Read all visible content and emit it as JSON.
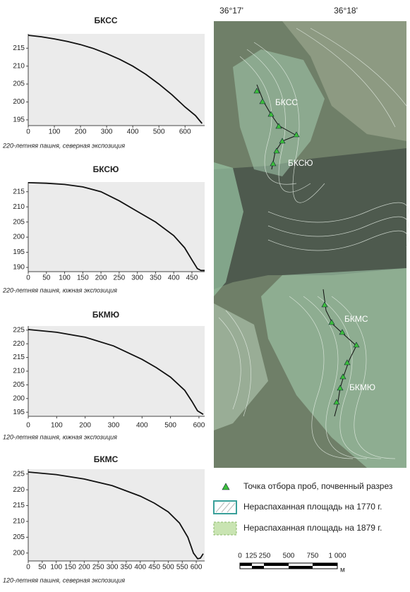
{
  "chart_data": [
    {
      "type": "line",
      "title": "БКСС",
      "x_label": "220-летняя пашня, северная экспозиция",
      "color": "#111111",
      "x": [
        0,
        50,
        100,
        150,
        200,
        250,
        300,
        350,
        400,
        450,
        500,
        550,
        600,
        640,
        665
      ],
      "values": [
        218.6,
        218.2,
        217.6,
        216.9,
        216.0,
        214.9,
        213.5,
        211.9,
        210.0,
        207.7,
        205.0,
        202.0,
        198.6,
        196.2,
        194.0
      ],
      "xlim": [
        0,
        675
      ],
      "ylim": [
        193.4,
        219
      ],
      "xticks": [
        0,
        100,
        200,
        300,
        400,
        500,
        600
      ],
      "yticks": [
        195,
        200,
        205,
        210,
        215
      ]
    },
    {
      "type": "line",
      "title": "БКСЮ",
      "x_label": "220-летняя пашня, южная экспозиция",
      "color": "#111111",
      "x": [
        0,
        50,
        100,
        150,
        200,
        250,
        300,
        350,
        400,
        430,
        450,
        465,
        475,
        485
      ],
      "values": [
        218.0,
        217.8,
        217.4,
        216.6,
        215.0,
        212.0,
        208.5,
        205.0,
        200.5,
        196.5,
        192.5,
        189.6,
        189.0,
        189.0
      ],
      "xlim": [
        0,
        485
      ],
      "ylim": [
        188.6,
        218.2
      ],
      "xticks": [
        0,
        50,
        100,
        150,
        200,
        250,
        300,
        350,
        400,
        450
      ],
      "yticks": [
        190,
        195,
        200,
        205,
        210,
        215
      ]
    },
    {
      "type": "line",
      "title": "БКМЮ",
      "x_label": "120-летняя пашня, южная экспозиция",
      "color": "#111111",
      "x": [
        0,
        100,
        200,
        300,
        400,
        450,
        500,
        550,
        575,
        595,
        615
      ],
      "values": [
        225.2,
        224.2,
        222.4,
        219.2,
        214.3,
        211.3,
        207.8,
        203.0,
        199.0,
        195.5,
        194.2
      ],
      "xlim": [
        0,
        620
      ],
      "ylim": [
        193.5,
        226.5
      ],
      "xticks": [
        0,
        100,
        200,
        300,
        400,
        500,
        600
      ],
      "yticks": [
        195,
        200,
        205,
        210,
        215,
        220,
        225
      ]
    },
    {
      "type": "line",
      "title": "БКМС",
      "x_label": "120-летняя пашня, северная экспозиция",
      "color": "#111111",
      "x": [
        0,
        100,
        200,
        300,
        400,
        450,
        500,
        540,
        570,
        590,
        605,
        615,
        625
      ],
      "values": [
        225.6,
        224.8,
        223.4,
        221.3,
        218.0,
        215.8,
        213.0,
        209.5,
        205.0,
        200.0,
        198.2,
        198.4,
        199.8
      ],
      "xlim": [
        0,
        630
      ],
      "ylim": [
        197.5,
        226.5
      ],
      "xticks": [
        0,
        50,
        100,
        150,
        200,
        250,
        300,
        350,
        400,
        450,
        500,
        550,
        600
      ],
      "yticks": [
        200,
        205,
        210,
        215,
        220,
        225
      ]
    }
  ],
  "map": {
    "lon_labels": [
      "36°17'",
      "36°18'"
    ],
    "site_labels": [
      "БКСС",
      "БКСЮ",
      "БКМС",
      "БКМЮ"
    ],
    "legend": [
      "Точка отбора проб, почвенный разрез",
      "Нераспаханная площадь на 1770 г.",
      "Нераспаханная площадь на 1879 г."
    ],
    "scale_labels": [
      "0",
      "125",
      "250",
      "500",
      "750",
      "1 000"
    ],
    "scale_unit": "м"
  }
}
